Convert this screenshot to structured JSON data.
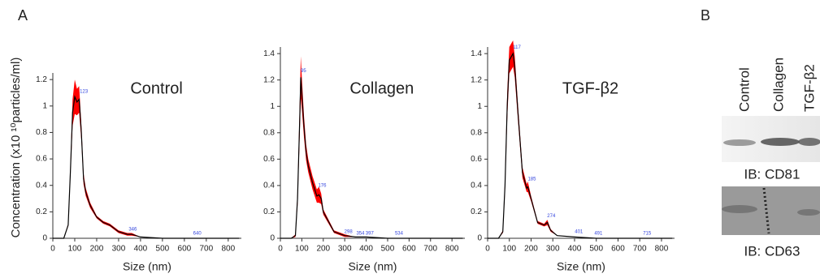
{
  "figure": {
    "panel_a": "A",
    "panel_b": "B",
    "ylabel": "Concentration (x10 ¹⁰particles/ml)"
  },
  "chart_data": [
    {
      "type": "line",
      "title": "Control",
      "xlabel": "Size (nm)",
      "xlim": [
        0,
        860
      ],
      "xticks": [
        0,
        100,
        200,
        300,
        400,
        500,
        600,
        700,
        800
      ],
      "ylim": [
        0,
        1.25
      ],
      "yticks": [
        0,
        0.2,
        0.4,
        0.6,
        0.8,
        1.0,
        1.2
      ],
      "x": [
        0,
        50,
        70,
        80,
        90,
        100,
        110,
        120,
        130,
        140,
        150,
        170,
        200,
        230,
        260,
        300,
        340,
        360,
        400,
        500,
        600,
        700,
        850
      ],
      "series": [
        {
          "color": "#000000",
          "error_color": "#ff0000",
          "values": [
            0,
            0,
            0.1,
            0.5,
            0.95,
            1.07,
            1.03,
            1.05,
            0.8,
            0.45,
            0.35,
            0.25,
            0.16,
            0.12,
            0.1,
            0.05,
            0.03,
            0.03,
            0.01,
            0,
            0,
            0,
            0
          ],
          "error": [
            0,
            0,
            0.01,
            0.04,
            0.1,
            0.13,
            0.1,
            0.1,
            0.06,
            0.04,
            0.03,
            0.02,
            0.01,
            0.01,
            0.01,
            0.01,
            0.01,
            0.01,
            0,
            0,
            0,
            0,
            0
          ]
        }
      ],
      "peaks": [
        123,
        346,
        640
      ],
      "peak_heights": [
        1.09,
        0.05,
        0.02
      ]
    },
    {
      "type": "line",
      "title": "Collagen",
      "xlabel": "Size (nm)",
      "xlim": [
        0,
        860
      ],
      "xticks": [
        0,
        100,
        200,
        300,
        400,
        500,
        600,
        700,
        800
      ],
      "ylim": [
        0,
        1.45
      ],
      "yticks": [
        0,
        0.2,
        0.4,
        0.6,
        0.8,
        1.0,
        1.2,
        1.4
      ],
      "x": [
        0,
        50,
        70,
        80,
        90,
        95,
        100,
        110,
        120,
        130,
        150,
        170,
        180,
        190,
        200,
        250,
        300,
        350,
        400,
        500,
        850
      ],
      "series": [
        {
          "color": "#000000",
          "error_color": "#ff0000",
          "values": [
            0,
            0,
            0.02,
            0.3,
            0.9,
            1.22,
            1.1,
            0.85,
            0.65,
            0.55,
            0.42,
            0.32,
            0.33,
            0.3,
            0.2,
            0.05,
            0.02,
            0.01,
            0.01,
            0,
            0
          ],
          "error": [
            0,
            0,
            0.01,
            0.05,
            0.12,
            0.16,
            0.12,
            0.08,
            0.06,
            0.05,
            0.05,
            0.05,
            0.06,
            0.04,
            0.02,
            0.01,
            0.01,
            0,
            0,
            0,
            0
          ]
        }
      ],
      "peaks": [
        95,
        176,
        298,
        354,
        397,
        534
      ],
      "peak_heights": [
        1.25,
        0.38,
        0.03,
        0.02,
        0.02,
        0.02
      ]
    },
    {
      "type": "line",
      "title": "TGF-β2",
      "xlabel": "Size (nm)",
      "xlim": [
        0,
        860
      ],
      "xticks": [
        0,
        100,
        200,
        300,
        400,
        500,
        600,
        700,
        800
      ],
      "ylim": [
        0,
        1.45
      ],
      "yticks": [
        0,
        0.2,
        0.4,
        0.6,
        0.8,
        1.0,
        1.2,
        1.4
      ],
      "x": [
        0,
        50,
        70,
        80,
        90,
        100,
        110,
        117,
        125,
        140,
        160,
        180,
        185,
        200,
        230,
        260,
        275,
        290,
        320,
        400,
        500,
        850
      ],
      "series": [
        {
          "color": "#000000",
          "error_color": "#ff0000",
          "values": [
            0,
            0,
            0.05,
            0.4,
            1.0,
            1.35,
            1.38,
            1.4,
            1.3,
            0.95,
            0.5,
            0.38,
            0.39,
            0.3,
            0.12,
            0.1,
            0.12,
            0.06,
            0.02,
            0.01,
            0,
            0
          ],
          "error": [
            0,
            0,
            0.01,
            0.05,
            0.1,
            0.1,
            0.1,
            0.1,
            0.08,
            0.06,
            0.04,
            0.03,
            0.04,
            0.02,
            0.01,
            0.01,
            0.02,
            0.01,
            0,
            0,
            0,
            0
          ]
        }
      ],
      "peaks": [
        117,
        185,
        274,
        401,
        491,
        715
      ],
      "peak_heights": [
        1.43,
        0.43,
        0.15,
        0.03,
        0.02,
        0.02
      ]
    }
  ],
  "blot": {
    "lanes": [
      "Control",
      "Collagen",
      "TGF-β2"
    ],
    "labels": [
      "IB: CD81",
      "IB: CD63"
    ]
  }
}
